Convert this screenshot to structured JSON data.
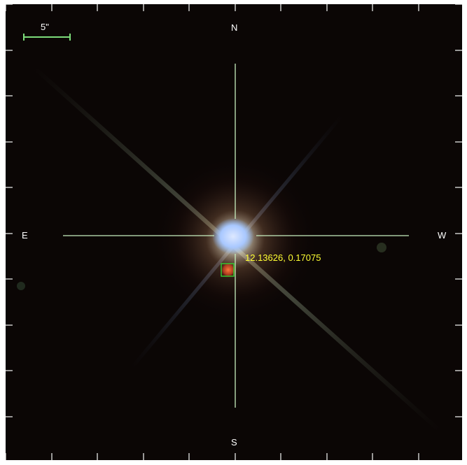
{
  "scale_bar": {
    "label": "5\"",
    "color": "#7ddc7a"
  },
  "compass": {
    "north": "N",
    "south": "S",
    "east": "E",
    "west": "W"
  },
  "marker": {
    "coordinates": "12.13626, 0.17075",
    "text_color": "#ffff33",
    "box_color": "#33dd33"
  },
  "colors": {
    "crosshair": "#c8f0c0",
    "star_core": "#a9c8ff",
    "background": "#0b0605",
    "frame": "#ffffff"
  },
  "icons": {
    "crosshair": "crosshair-icon",
    "scale": "scale-bar-icon"
  }
}
